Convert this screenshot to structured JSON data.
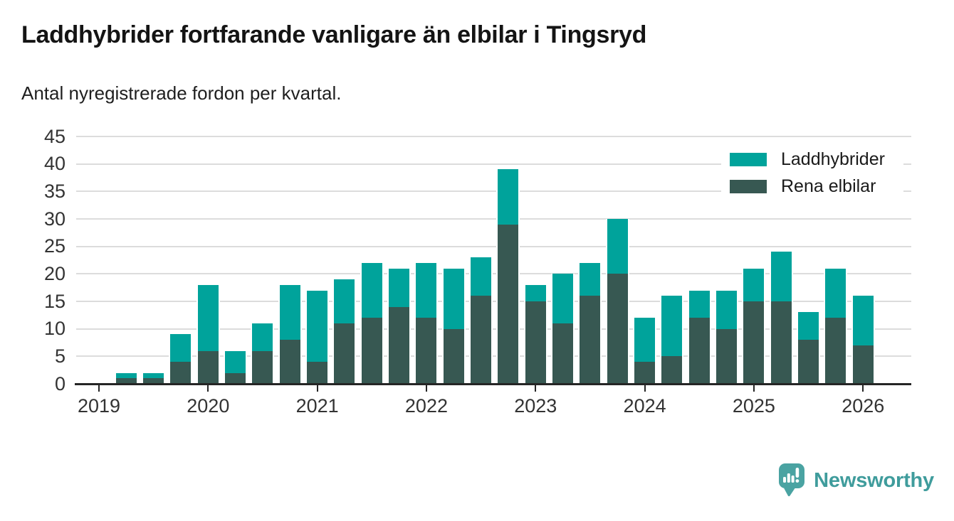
{
  "header": {
    "title": "Laddhybrider fortfarande vanligare än elbilar i Tingsryd",
    "subtitle": "Antal nyregistrerade fordon per kvartal."
  },
  "chart_data": {
    "type": "bar",
    "stacked": true,
    "title": "Laddhybrider fortfarande vanligare än elbilar i Tingsryd",
    "subtitle": "Antal nyregistrerade fordon per kvartal.",
    "categories": [
      "2019 Q1",
      "2019 Q2",
      "2019 Q3",
      "2019 Q4",
      "2020 Q1",
      "2020 Q2",
      "2020 Q3",
      "2020 Q4",
      "2021 Q1",
      "2021 Q2",
      "2021 Q3",
      "2021 Q4",
      "2022 Q1",
      "2022 Q2",
      "2022 Q3",
      "2022 Q4",
      "2023 Q1",
      "2023 Q2",
      "2023 Q3",
      "2023 Q4",
      "2024 Q1",
      "2024 Q2",
      "2024 Q3",
      "2024 Q4",
      "2025 Q1",
      "2025 Q2",
      "2025 Q3",
      "2025 Q4",
      "2026 Q1"
    ],
    "series": [
      {
        "name": "Laddhybrider",
        "role": "top",
        "color": "#00a39b",
        "values": [
          0,
          1,
          1,
          5,
          12,
          4,
          5,
          10,
          13,
          8,
          10,
          7,
          10,
          11,
          7,
          10,
          3,
          9,
          6,
          10,
          8,
          11,
          5,
          7,
          6,
          9,
          5,
          9,
          9
        ]
      },
      {
        "name": "Rena elbilar",
        "role": "bottom",
        "color": "#375852",
        "values": [
          0,
          1,
          1,
          4,
          6,
          2,
          6,
          8,
          4,
          11,
          12,
          14,
          12,
          10,
          16,
          29,
          15,
          11,
          16,
          20,
          4,
          5,
          12,
          10,
          15,
          15,
          8,
          12,
          7
        ]
      }
    ],
    "x_axis_year_labels": [
      "2019",
      "2020",
      "2021",
      "2022",
      "2023",
      "2024",
      "2025",
      "2026"
    ],
    "yticks": [
      0,
      5,
      10,
      15,
      20,
      25,
      30,
      35,
      40,
      45
    ],
    "ylim": [
      0,
      45
    ],
    "grid": "horizontal",
    "legend_position": "top-right"
  },
  "colors": {
    "axis": "#252525",
    "gridline": "#dcdcdc",
    "axis_text": "#333333",
    "title_text": "#141414"
  },
  "footer": {
    "brand": "Newsworthy",
    "brand_color": "#3f9c9c",
    "brand_icon_color": "#4aa3a2",
    "brand_icon": "newsworthy-speech-bubble-bar-chart-icon"
  }
}
